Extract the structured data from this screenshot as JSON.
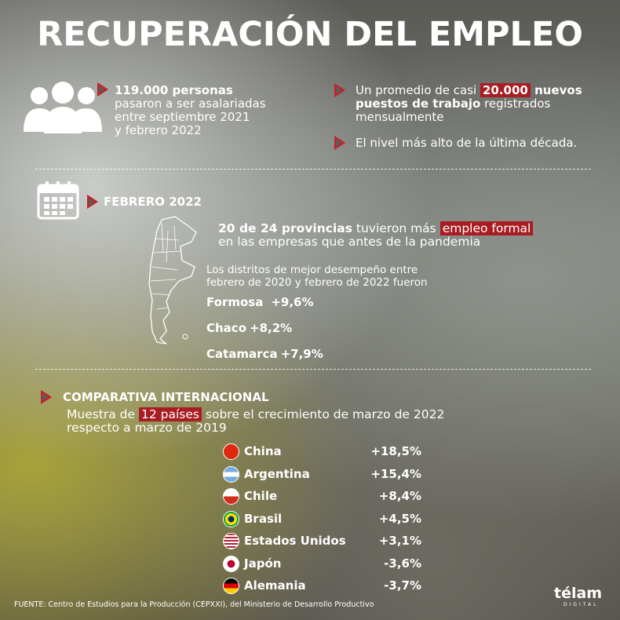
{
  "title": "RECUPERACIÓN DEL EMPLEO",
  "stat1": {
    "bold": "119.000 personas",
    "lines": [
      "pasaron a ser asalariadas",
      "entre septiembre 2021",
      "y febrero 2022"
    ]
  },
  "stat2": {
    "text1": "Un promedio de casi ",
    "highlight": "20.000",
    "bold": " nuevos",
    "bold2": "puestos de trabajo",
    "text2": " registrados",
    "text3": "mensualmente"
  },
  "stat3": "El nivel más alto de la última década.",
  "february": {
    "heading": "FEBRERO 2022",
    "bold": "20 de 24 provincias",
    "text1": " tuvieron más ",
    "highlight": "empleo formal",
    "text2": "en las empresas que antes de la pandemia",
    "intro": [
      "Los distritos de mejor desempeño entre",
      "febrero de 2020 y febrero de 2022 fueron"
    ],
    "districts": [
      {
        "name": "Formosa",
        "value": "+9,6%"
      },
      {
        "name": "Chaco",
        "value": "+8,2%"
      },
      {
        "name": "Catamarca",
        "value": "+7,9%"
      }
    ]
  },
  "international": {
    "heading": "COMPARATIVA INTERNACIONAL",
    "text1": "Muestra de ",
    "highlight": "12 países",
    "text2": " sobre el crecimiento de marzo de 2022",
    "text3": "respecto a marzo de 2019",
    "countries": [
      {
        "name": "China",
        "value": "+18,5%"
      },
      {
        "name": "Argentina",
        "value": "+15,4%"
      },
      {
        "name": "Chile",
        "value": "+8,4%"
      },
      {
        "name": "Brasil",
        "value": "+4,5%"
      },
      {
        "name": "Estados Unidos",
        "value": "+3,1%"
      },
      {
        "name": "Japón",
        "value": "-3,6%"
      },
      {
        "name": "Alemania",
        "value": "-3,7%"
      }
    ]
  },
  "footer": "FUENTE: Centro de Estudios para la Producción (CEPXXI), del Ministerio de Desarrollo Productivo",
  "logo": {
    "name": "télam",
    "sub": "DIGITAL"
  }
}
